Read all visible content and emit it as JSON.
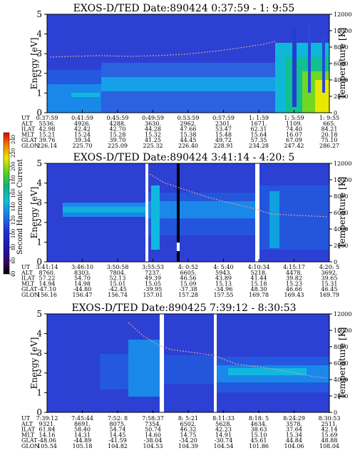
{
  "colorbar": {
    "label": "Second Harmonic Current",
    "ticks": [
      40,
      60,
      80,
      100,
      120,
      140,
      160,
      180,
      200,
      220,
      240
    ],
    "range": [
      40,
      250
    ]
  },
  "chart_data": [
    {
      "type": "heatmap",
      "title": "EXOS-D/TED   Date:890424  0:37:59 -  1: 9:55",
      "ylabel": "Energy [eV]",
      "y2label": "Temperature [K]",
      "ylim": [
        0,
        5
      ],
      "y2lim": [
        0,
        12000
      ],
      "yticks": [
        0,
        1,
        2,
        3,
        4,
        5
      ],
      "y2ticks": [
        0,
        2000,
        4000,
        6000,
        8000,
        10000,
        12000
      ],
      "row_labels": [
        "UT",
        "ALT",
        "ILAT",
        "MLT",
        "GLAT",
        "GLON"
      ],
      "columns": [
        [
          "0:37:59",
          "5536.",
          "42.98",
          "15.21",
          "39.76",
          "226.14"
        ],
        [
          "0:41:59",
          "4926.",
          "42.42",
          "15.24",
          "39.34",
          "225.70"
        ],
        [
          "0:45:59",
          "4288.",
          "42.70",
          "15.28",
          "39.70",
          "225.09"
        ],
        [
          "0:49:59",
          "3630.",
          "44.28",
          "15.32",
          "41.25",
          "225.32"
        ],
        [
          "0:53:59",
          "2962.",
          "47.66",
          "15.38",
          "44.45",
          "226.40"
        ],
        [
          "0:57:59",
          "2301.",
          "53.47",
          "15.48",
          "49.72",
          "228.91"
        ],
        [
          "1: 1:59",
          "1671.",
          "62.31",
          "15.64",
          "57.35",
          "234.28"
        ],
        [
          "1: 5:59",
          "1109.",
          "74.40",
          "16.07",
          "67.09",
          "247.42"
        ],
        [
          "1: 9:55",
          "665.",
          "84.21",
          "20.18",
          "75.10",
          "286.27"
        ]
      ]
    },
    {
      "type": "heatmap",
      "title": "EXOS-D/TED   Date:890424  3:41:14 -  4:20: 5",
      "ylabel": "Energy [eV]",
      "y2label": "Temperature [K]",
      "ylim": [
        0,
        5
      ],
      "y2lim": [
        0,
        12000
      ],
      "yticks": [
        0,
        1,
        2,
        3,
        4,
        5
      ],
      "y2ticks": [
        0,
        2000,
        4000,
        6000,
        8000,
        10000,
        12000
      ],
      "row_labels": [
        "UT",
        "ALT",
        "ILAT",
        "MLT",
        "GLAT",
        "GLON"
      ],
      "columns": [
        [
          "3:41:14",
          "8760.",
          "57.22",
          "14.94",
          "-47.10",
          "156.16"
        ],
        [
          "3:46:10",
          "8303.",
          "54.70",
          "14.98",
          "-44.80",
          "156.47"
        ],
        [
          "3:50:58",
          "7804.",
          "52.13",
          "15.01",
          "-42.45",
          "156.74"
        ],
        [
          "3:55:53",
          "7237.",
          "49.39",
          "15.05",
          "-39.95",
          "157.01"
        ],
        [
          "4: 0:52",
          "6605.",
          "46.56",
          "15.09",
          "-37.38",
          "157.28"
        ],
        [
          "4: 5:40",
          "5943.",
          "43.89",
          "15.13",
          "-34.96",
          "157.55"
        ],
        [
          "4:10:34",
          "5218.",
          "41.44",
          "15.18",
          "48.30",
          "169.78"
        ],
        [
          "4:15:17",
          "4478.",
          "39.82",
          "15.23",
          "46.66",
          "169.43"
        ],
        [
          "4:20: 5",
          "3692.",
          "39.65",
          "15.31",
          "46.45",
          "169.79"
        ]
      ]
    },
    {
      "type": "heatmap",
      "title": "EXOS-D/TED   Date:890425  7:39:12 -  8:30:53",
      "ylabel": "Energy [eV]",
      "y2label": "Temperature [K]",
      "ylim": [
        0,
        5
      ],
      "y2lim": [
        0,
        12000
      ],
      "yticks": [
        0,
        1,
        2,
        3,
        4,
        5
      ],
      "y2ticks": [
        0,
        2000,
        4000,
        6000,
        8000,
        10000,
        12000
      ],
      "row_labels": [
        "UT",
        "ALT",
        "ILAT",
        "MLT",
        "GLAT",
        "GLON"
      ],
      "columns": [
        [
          "7:39:12",
          "9321.",
          "61.84",
          "14.16",
          "-48.06",
          "105.54"
        ],
        [
          "7:45:44",
          "8691.",
          "58.40",
          "14.31",
          "-44.89",
          "105.18"
        ],
        [
          "7:52: 8",
          "8075.",
          "54.74",
          "14.45",
          "-41.59",
          "104.82"
        ],
        [
          "7:58:37",
          "7354.",
          "50.74",
          "14.60",
          "-38.04",
          "104.53"
        ],
        [
          "8: 5:21",
          "6502.",
          "46.32",
          "14.75",
          "-34.20",
          "104.39"
        ],
        [
          "8:11:33",
          "5628.",
          "42.23",
          "14.91",
          "-30.74",
          "104.54"
        ],
        [
          "8:18: 5",
          "4634.",
          "38.63",
          "15.10",
          "45.61",
          "101.86"
        ],
        [
          "8:24:29",
          "3578.",
          "37.64",
          "15.34",
          "44.84",
          "104.06"
        ],
        [
          "8:30:53",
          "2511.",
          "42.14",
          "15.69",
          "48.88",
          "108.04"
        ]
      ]
    }
  ]
}
